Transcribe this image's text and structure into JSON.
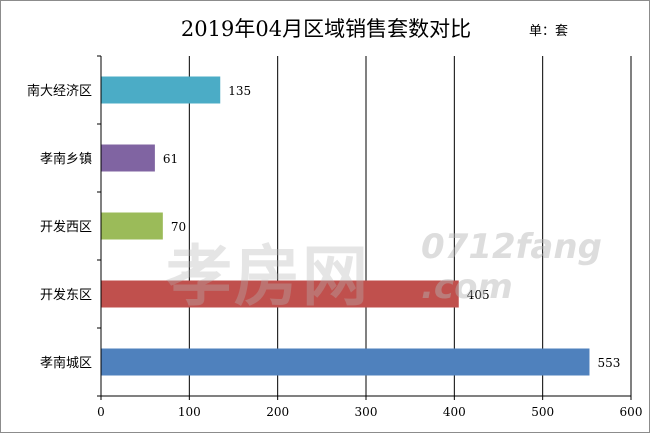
{
  "chart_data": {
    "type": "bar",
    "orientation": "horizontal",
    "title": "2019年04月区域销售套数对比",
    "unit_label": "单：套",
    "categories": [
      "南大经济区",
      "孝南乡镇",
      "开发西区",
      "开发东区",
      "孝南城区"
    ],
    "values": [
      135,
      61,
      70,
      405,
      553
    ],
    "colors": [
      "#4bacc6",
      "#8064a2",
      "#9bbb59",
      "#c0504d",
      "#4f81bd"
    ],
    "xlim": [
      0,
      600
    ],
    "xticks": [
      0,
      100,
      200,
      300,
      400,
      500,
      600
    ],
    "grid": true,
    "legend": "none"
  },
  "watermark": {
    "main": "孝房网",
    "sub1": "0712fang",
    "sub2": ".com"
  }
}
